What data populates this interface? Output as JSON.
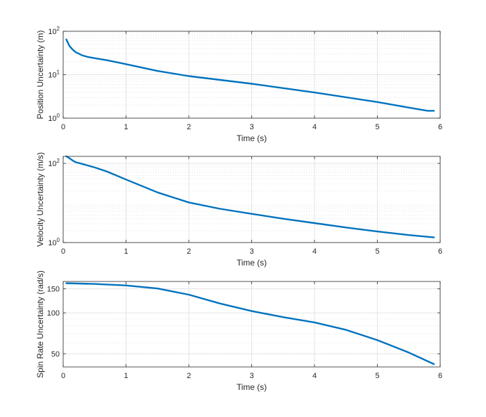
{
  "chart_data": [
    {
      "type": "line",
      "xlabel": "Time (s)",
      "ylabel": "Position Uncertainty (m)",
      "xlim": [
        0,
        6
      ],
      "ylim": [
        1,
        100
      ],
      "yscale": "log",
      "xticks": [
        "0",
        "1",
        "2",
        "3",
        "4",
        "5",
        "6"
      ],
      "yticks": [
        {
          "base": "10",
          "exp": "0",
          "value": 1
        },
        {
          "base": "10",
          "exp": "1",
          "value": 10
        },
        {
          "base": "10",
          "exp": "2",
          "value": 100
        }
      ],
      "grid": true,
      "color": "#0072BD",
      "series": [
        {
          "x": [
            0.05,
            0.1,
            0.15,
            0.2,
            0.3,
            0.4,
            0.5,
            0.7,
            1.0,
            1.5,
            2.0,
            3.0,
            4.0,
            5.0,
            5.5,
            5.8,
            5.9
          ],
          "y": [
            65,
            46,
            38,
            33,
            28,
            25.5,
            24,
            21.5,
            17.5,
            12.2,
            9.3,
            6.2,
            3.9,
            2.35,
            1.75,
            1.48,
            1.48
          ]
        }
      ]
    },
    {
      "type": "line",
      "xlabel": "Time (s)",
      "ylabel": "Velocity Uncertainty (m/s)",
      "xlim": [
        0,
        6
      ],
      "ylim": [
        1,
        150
      ],
      "yscale": "log",
      "xticks": [
        "0",
        "1",
        "2",
        "3",
        "4",
        "5",
        "6"
      ],
      "yticks": [
        {
          "base": "10",
          "exp": "0",
          "value": 1
        },
        {
          "base": "10",
          "exp": "2",
          "value": 100
        }
      ],
      "grid": true,
      "color": "#0072BD",
      "series": [
        {
          "x": [
            0.05,
            0.1,
            0.15,
            0.2,
            0.3,
            0.5,
            0.7,
            1.0,
            1.5,
            2.0,
            2.5,
            3.0,
            3.5,
            4.0,
            4.5,
            5.0,
            5.5,
            5.9
          ],
          "y": [
            150,
            135,
            118,
            107,
            97,
            79,
            62,
            39,
            18.5,
            10.3,
            7.1,
            5.3,
            4.0,
            3.1,
            2.4,
            1.9,
            1.55,
            1.35
          ]
        }
      ]
    },
    {
      "type": "line",
      "xlabel": "Time (s)",
      "ylabel": "Spin Rate Uncertainty (rad/s)",
      "xlim": [
        0,
        6
      ],
      "ylim": [
        40,
        170
      ],
      "yscale": "log",
      "xticks": [
        "0",
        "1",
        "2",
        "3",
        "4",
        "5",
        "6"
      ],
      "yticks": [
        {
          "label": "50",
          "value": 50
        },
        {
          "label": "100",
          "value": 100
        },
        {
          "label": "150",
          "value": 150
        }
      ],
      "grid": true,
      "color": "#0072BD",
      "series": [
        {
          "x": [
            0.05,
            0.5,
            1.0,
            1.5,
            2.0,
            2.5,
            3.0,
            3.5,
            4.0,
            4.5,
            5.0,
            5.5,
            5.9
          ],
          "y": [
            165,
            163,
            159,
            151,
            136,
            117,
            103,
            93,
            85,
            75,
            63,
            51,
            42
          ]
        }
      ]
    }
  ]
}
